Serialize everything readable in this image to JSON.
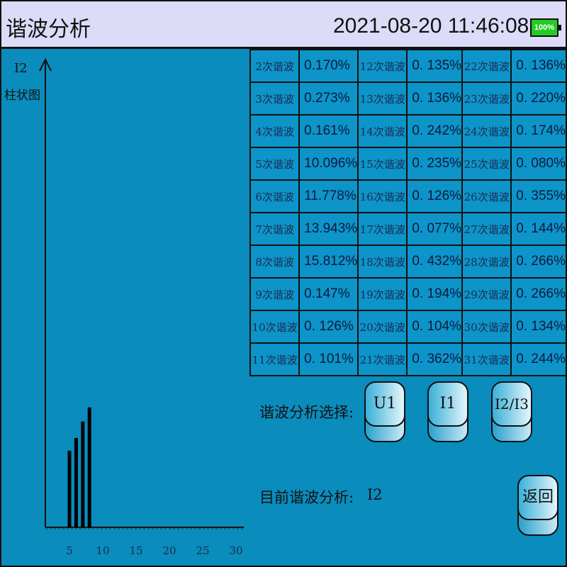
{
  "header": {
    "title": "谐波分析",
    "datetime": "2021-08-20 11:46:08",
    "battery": "100%",
    "battery_color": "#22cc22"
  },
  "chart": {
    "channel": "I2",
    "label": "柱状图"
  },
  "chart_data": {
    "type": "bar",
    "x": [
      5,
      6,
      7,
      8
    ],
    "values": [
      10.096,
      11.778,
      13.943,
      15.812
    ],
    "xticks": [
      "5",
      "10",
      "15",
      "20",
      "25",
      "30"
    ],
    "xlim": [
      1,
      31
    ]
  },
  "table": [
    [
      "2次谐波",
      "0.170%",
      "12次谐波",
      "0. 135%",
      "22次谐波",
      "0. 136%"
    ],
    [
      "3次谐波",
      "0.273%",
      "13次谐波",
      "0. 136%",
      "23次谐波",
      "0. 220%"
    ],
    [
      "4次谐波",
      "0.161%",
      "14次谐波",
      "0. 242%",
      "24次谐波",
      "0. 174%"
    ],
    [
      "5次谐波",
      "10.096%",
      "15次谐波",
      "0. 235%",
      "25次谐波",
      "0. 080%"
    ],
    [
      "6次谐波",
      "11.778%",
      "16次谐波",
      "0. 126%",
      "26次谐波",
      "0. 355%"
    ],
    [
      "7次谐波",
      "13.943%",
      "17次谐波",
      "0. 077%",
      "27次谐波",
      "0. 144%"
    ],
    [
      "8次谐波",
      "15.812%",
      "18次谐波",
      "0. 432%",
      "28次谐波",
      "0. 266%"
    ],
    [
      "9次谐波",
      "0.147%",
      "19次谐波",
      "0. 194%",
      "29次谐波",
      "0. 266%"
    ],
    [
      "10次谐波",
      "0. 126%",
      "20次谐波",
      "0. 104%",
      "30次谐波",
      "0. 134%"
    ],
    [
      "11次谐波",
      "0. 101%",
      "21次谐波",
      "0. 362%",
      "31次谐波",
      "0. 244%"
    ]
  ],
  "selection": {
    "label": "谐波分析选择:",
    "buttons": [
      "U1",
      "I1",
      "I2/I3"
    ]
  },
  "current": {
    "label": "目前谐波分析:",
    "value": "I2"
  },
  "back": "返回"
}
